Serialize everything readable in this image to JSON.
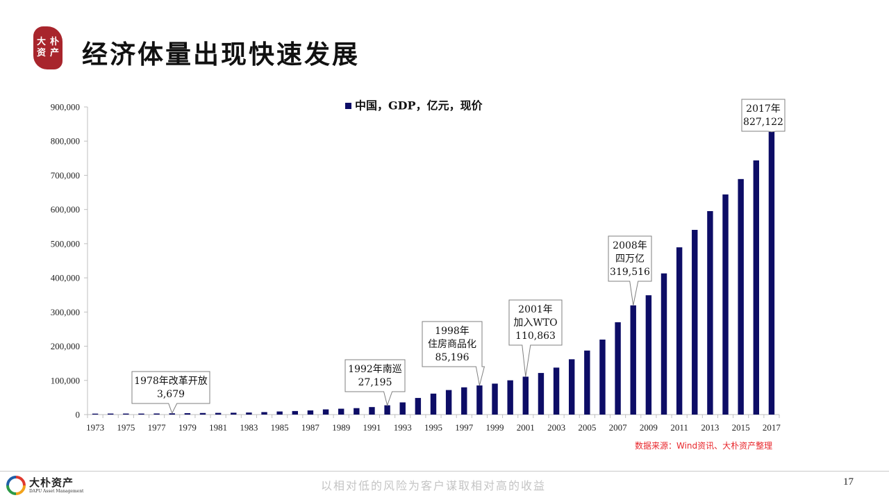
{
  "header": {
    "title": "经济体量出现快速发展",
    "logo_chars": [
      "大",
      "朴",
      "资",
      "产"
    ]
  },
  "chart_data": {
    "type": "bar",
    "legend": {
      "label": "中国，GDP，亿元，现价",
      "placement": "top-center"
    },
    "ylim": [
      0,
      900000
    ],
    "yticks": [
      "0",
      "100,000",
      "200,000",
      "300,000",
      "400,000",
      "500,000",
      "600,000",
      "700,000",
      "800,000",
      "900,000"
    ],
    "color": "#0d0d66",
    "categories": [
      "1973",
      "1974",
      "1975",
      "1976",
      "1977",
      "1978",
      "1979",
      "1980",
      "1981",
      "1982",
      "1983",
      "1984",
      "1985",
      "1986",
      "1987",
      "1988",
      "1989",
      "1990",
      "1991",
      "1992",
      "1993",
      "1994",
      "1995",
      "1996",
      "1997",
      "1998",
      "1999",
      "2000",
      "2001",
      "2002",
      "2003",
      "2004",
      "2005",
      "2006",
      "2007",
      "2008",
      "2009",
      "2010",
      "2011",
      "2012",
      "2013",
      "2014",
      "2015",
      "2016",
      "2017"
    ],
    "x_tick_labels": [
      "1973",
      "1975",
      "1977",
      "1979",
      "1981",
      "1983",
      "1985",
      "1987",
      "1989",
      "1991",
      "1993",
      "1995",
      "1997",
      "1999",
      "2001",
      "2003",
      "2005",
      "2007",
      "2009",
      "2011",
      "2013",
      "2015",
      "2017"
    ],
    "values": [
      2752,
      2998,
      3001,
      2944,
      3202,
      3679,
      4100,
      4588,
      4936,
      5373,
      6021,
      7279,
      9099,
      10376,
      12175,
      15180,
      17180,
      18873,
      22006,
      27195,
      35673,
      48637,
      61340,
      71814,
      79715,
      85196,
      90564,
      100280,
      110863,
      121717,
      137422,
      161840,
      187319,
      219439,
      270092,
      319516,
      349081,
      413030,
      489301,
      540367,
      595244,
      643974,
      689052,
      743586,
      827122
    ],
    "annotations": [
      {
        "year": "1978",
        "lines": [
          "1978年改革开放",
          "3,679"
        ]
      },
      {
        "year": "1992",
        "lines": [
          "1992年南巡",
          "27,195"
        ]
      },
      {
        "year": "1998",
        "lines": [
          "1998年",
          "住房商品化",
          "85,196"
        ]
      },
      {
        "year": "2001",
        "lines": [
          "2001年",
          "加入WTO",
          "110,863"
        ]
      },
      {
        "year": "2008",
        "lines": [
          "2008年",
          "四万亿",
          "319,516"
        ]
      },
      {
        "year": "2017",
        "lines": [
          "2017年",
          "827,122"
        ]
      }
    ]
  },
  "source": "数据来源：Wind资讯、大朴资产整理",
  "footer": {
    "brand_name": "大朴资产",
    "brand_en": "DAPU Asset Management",
    "slogan": "以相对低的风险为客户谋取相对高的收益",
    "page_number": "17"
  }
}
